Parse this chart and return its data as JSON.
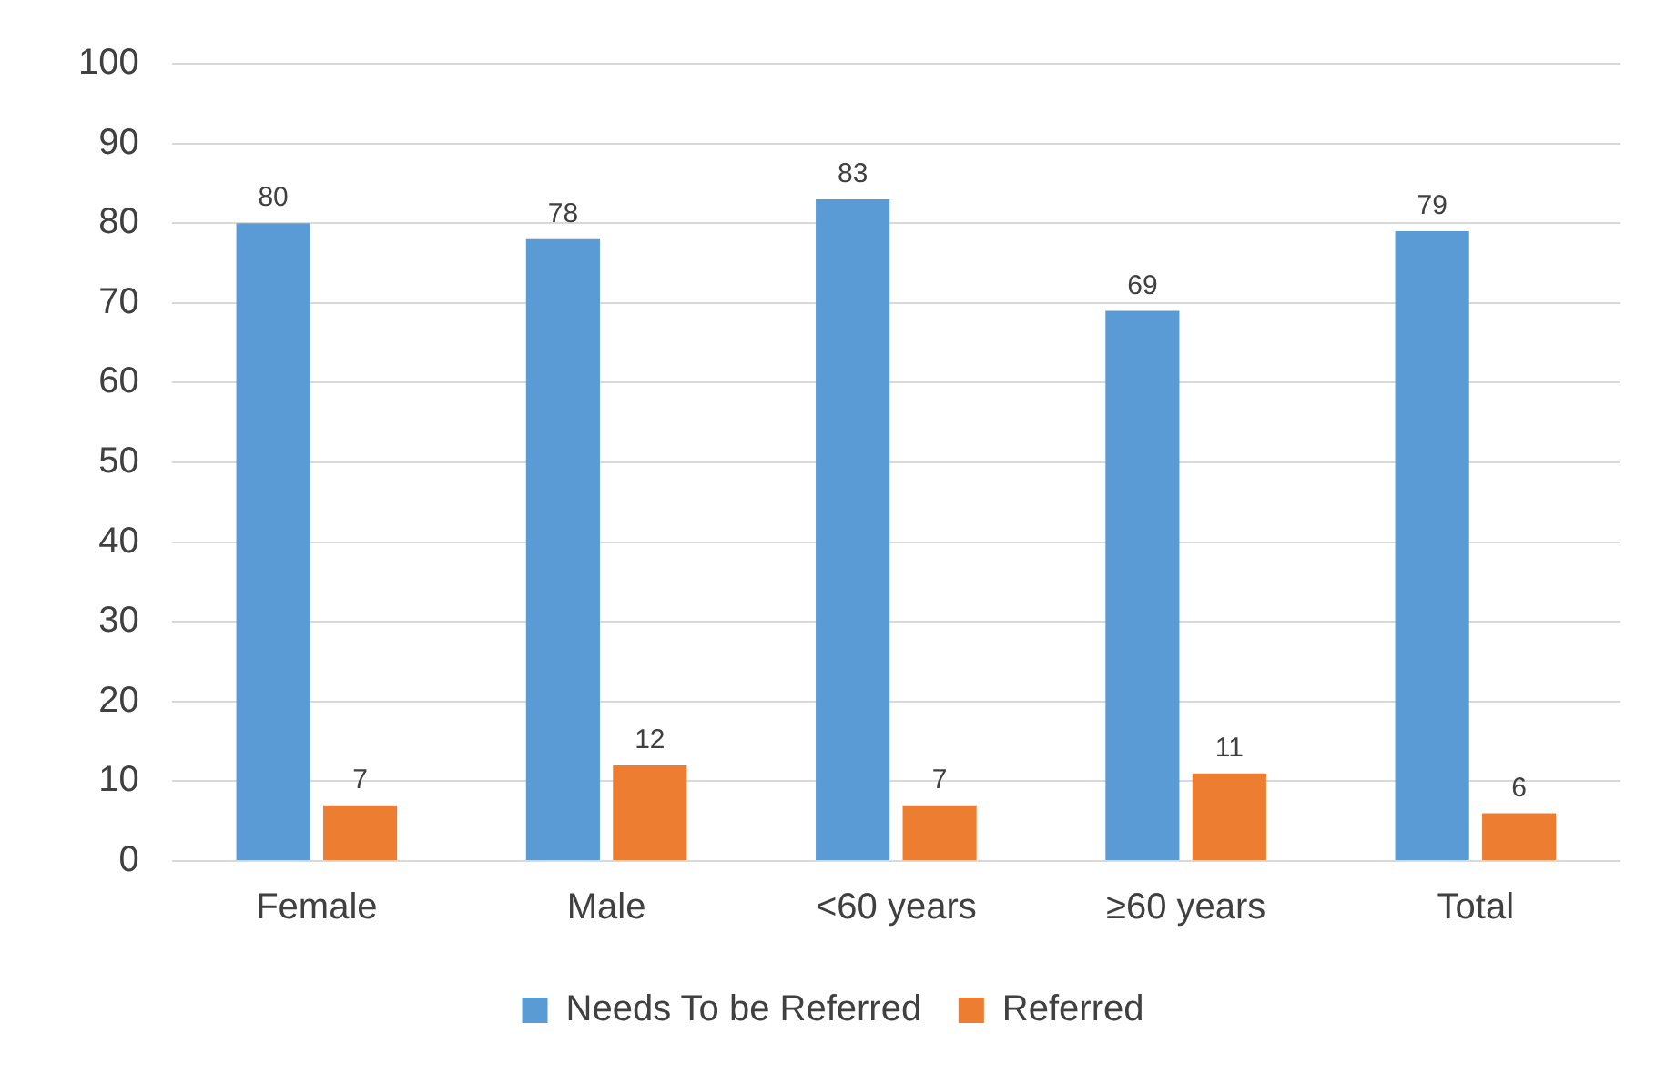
{
  "chart_data": {
    "type": "bar",
    "categories": [
      "Female",
      "Male",
      "<60 years",
      "≥60 years",
      "Total"
    ],
    "series": [
      {
        "name": "Needs To be Referred",
        "color": "#5b9bd5",
        "values": [
          80,
          78,
          83,
          69,
          79
        ]
      },
      {
        "name": "Referred",
        "color": "#ed7d31",
        "values": [
          7,
          12,
          7,
          11,
          6
        ]
      }
    ],
    "ylim": [
      0,
      100
    ],
    "yticks": [
      0,
      10,
      20,
      30,
      40,
      50,
      60,
      70,
      80,
      90,
      100
    ],
    "grid": "y",
    "legend": "bottom",
    "data_labels": true
  }
}
